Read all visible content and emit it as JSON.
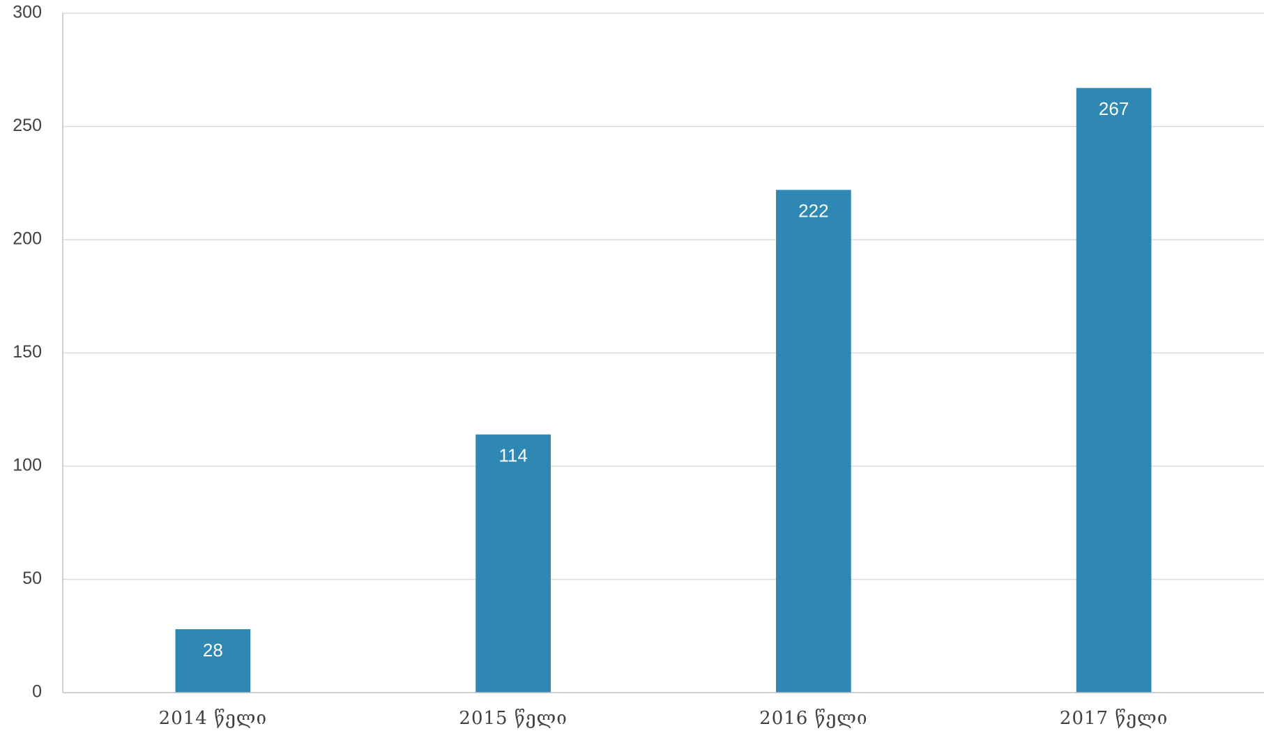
{
  "chart_data": {
    "type": "bar",
    "categories": [
      "2014 წელი",
      "2015 წელი",
      "2016 წელი",
      "2017 წელი"
    ],
    "values": [
      28,
      114,
      222,
      267
    ],
    "data_labels": [
      "28",
      "114",
      "222",
      "267"
    ],
    "y_ticks": [
      "0",
      "50",
      "100",
      "150",
      "200",
      "250",
      "300"
    ],
    "ylim": [
      0,
      300
    ],
    "grid": true,
    "bar_color": "#2E88B3",
    "gridline_color": "#D9D9D9",
    "axis_color": "#BFBFBF",
    "legend": "none"
  }
}
